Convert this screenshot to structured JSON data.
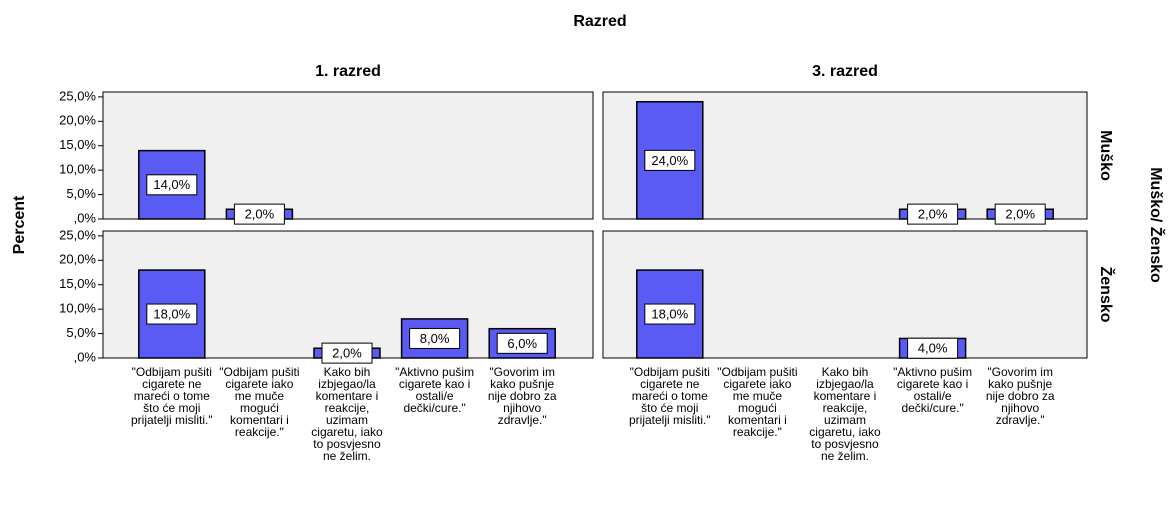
{
  "chart_data": {
    "type": "bar",
    "title": "Razred",
    "ylabel": "Percent",
    "row_title": "Muško/ Žensko",
    "columns": [
      "1. razred",
      "3. razred"
    ],
    "categories": [
      "\"Odbijam pušiti cigarete ne mareći o tome što će moji prijatelji misliti.\"",
      "\"Odbijam pušiti cigarete iako me muče mogući komentari i reakcije.\"",
      "Kako bih izbjegao/la komentare i reakcije, uzimam cigaretu, iako to posvjesno ne želim.",
      "\"Aktivno pušim cigarete kao i ostali/e dečki/cure.\"",
      "\"Govorim im kako pušnje nije dobro za njihovo zdravlje.\""
    ],
    "rows": [
      {
        "name": "Muško",
        "cells": [
          {
            "values": [
              14,
              2,
              null,
              null,
              null
            ],
            "value_labels": [
              "14,0%",
              "2,0%",
              null,
              null,
              null
            ]
          },
          {
            "values": [
              24,
              null,
              null,
              2,
              2
            ],
            "value_labels": [
              "24,0%",
              null,
              null,
              "2,0%",
              "2,0%"
            ]
          }
        ]
      },
      {
        "name": "Žensko",
        "cells": [
          {
            "values": [
              18,
              null,
              2,
              8,
              6
            ],
            "value_labels": [
              "18,0%",
              null,
              "2,0%",
              "8,0%",
              "6,0%"
            ]
          },
          {
            "values": [
              18,
              null,
              null,
              4,
              null
            ],
            "value_labels": [
              "18,0%",
              null,
              null,
              "4,0%",
              null
            ]
          }
        ]
      }
    ],
    "color": "#5a5af5",
    "ylim": [
      0,
      26
    ],
    "yticks": [
      {
        "value": 0,
        "label": ",0%"
      },
      {
        "value": 5,
        "label": "5,0%"
      },
      {
        "value": 10,
        "label": "10,0%"
      },
      {
        "value": 15,
        "label": "15,0%"
      },
      {
        "value": 20,
        "label": "20,0%"
      },
      {
        "value": 25,
        "label": "25,0%"
      }
    ]
  }
}
